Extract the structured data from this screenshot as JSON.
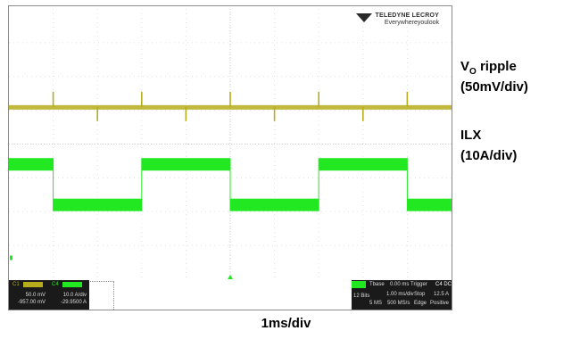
{
  "chart_data": {
    "type": "line",
    "title": "",
    "xlabel": "1ms/div",
    "x_divisions": 10,
    "y_divisions": 8,
    "series": [
      {
        "name": "VO ripple (50mV/div)",
        "color": "#b5ad1c",
        "waveform": "dc level with spikes at current transitions",
        "transition_times_ms": [
          0.0,
          1.0,
          2.0,
          3.0,
          4.0,
          5.0,
          6.0,
          7.0,
          8.0,
          9.0
        ]
      },
      {
        "name": "ILX (10A/div)",
        "color": "#22e822",
        "waveform": "square wave",
        "high_intervals_ms": [
          [
            0.0,
            1.0
          ],
          [
            3.0,
            5.0
          ],
          [
            7.0,
            9.0
          ]
        ],
        "low_intervals_ms": [
          [
            1.0,
            3.0
          ],
          [
            5.0,
            7.0
          ],
          [
            9.0,
            10.0
          ]
        ]
      }
    ]
  },
  "labels": {
    "vo_main": "V",
    "vo_sub": "O",
    "vo_rest": " ripple",
    "vo_scale": "(50mV/div)",
    "ilx": "ILX",
    "ilx_scale": "(10A/div)",
    "timebase": "1ms/div"
  },
  "logo": {
    "brand": "TELEDYNE LECROY",
    "tagline": "Everywhereyoulook"
  },
  "status": {
    "c1": {
      "tag": "C1",
      "scale": "50.0 mV",
      "offset": "-957.00 mV"
    },
    "c4": {
      "tag": "C4",
      "scale": "10.0 A/div",
      "offset": "-29.9500 A"
    },
    "tbase": {
      "label": "Tbase",
      "value": "0.00 ms"
    },
    "trigger": {
      "label": "Trigger",
      "value": "C4 DC"
    },
    "bits": "12 Bits",
    "rate": "1.00 ms/div",
    "samples": "5 MS",
    "srate": "500 MS/s",
    "mode": "Stop",
    "edge": "Edge",
    "level": "12.5 A",
    "slope": "Positive"
  },
  "colors": {
    "vo": "#b5ad1c",
    "ilx": "#22e822",
    "grid": "#e2e2e2"
  }
}
